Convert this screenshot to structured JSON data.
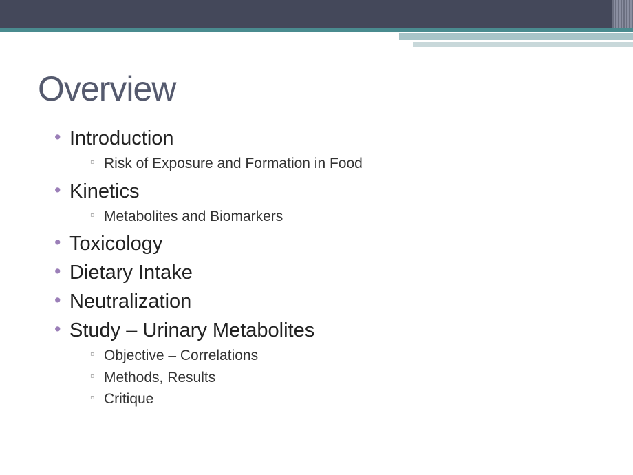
{
  "slide": {
    "title": "Overview",
    "bullets": [
      {
        "text": "Introduction",
        "sub": [
          "Risk of Exposure and Formation in Food"
        ]
      },
      {
        "text": "Kinetics",
        "sub": [
          "Metabolites and Biomarkers"
        ]
      },
      {
        "text": "Toxicology",
        "sub": []
      },
      {
        "text": "Dietary Intake",
        "sub": []
      },
      {
        "text": "Neutralization",
        "sub": []
      },
      {
        "text": "Study – Urinary Metabolites",
        "sub": [
          "Objective – Correlations",
          "Methods, Results",
          "Critique"
        ]
      }
    ]
  },
  "colors": {
    "title_color": "#555a6e",
    "bullet_marker": "#9b7fb8",
    "header_dark": "#44485a",
    "header_teal": "#4a8b8f",
    "accent_light": "#a8c4c8"
  }
}
